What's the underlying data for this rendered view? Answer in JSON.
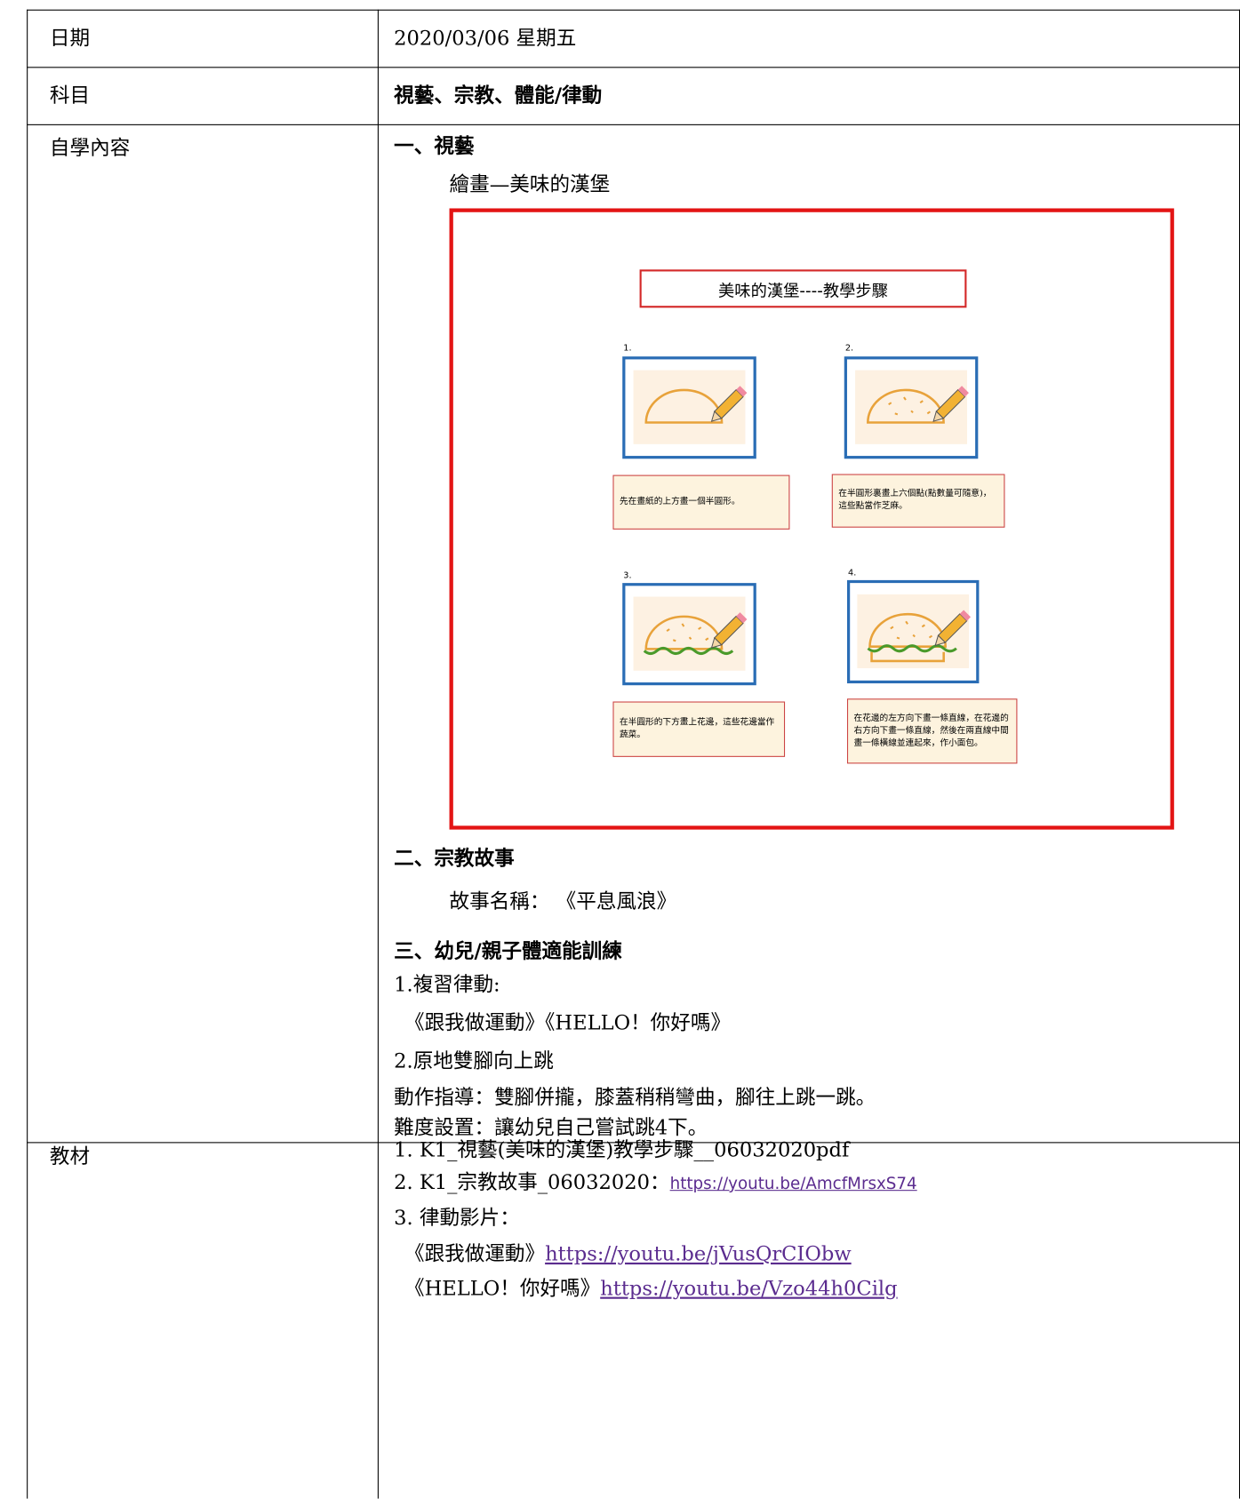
{
  "table": {
    "rows": [
      {
        "label": "日期",
        "value": "2020/03/06 星期五"
      },
      {
        "label": "科目",
        "value": "視藝、宗教、體能/律動"
      },
      {
        "label": "自學內容",
        "lines": [
          "一、視藝",
          "繪畫—美味的漢堡",
          "二、宗教故事",
          "故事名稱： 《平息風浪》",
          "三、幼兒/親子體適能訓練",
          "1.複習律動:",
          "《跟我做運動》《HELLO！你好嗎》",
          "2.原地雙腳向上跳",
          "動作指導：雙腳併攏，膝蓋稍稍彎曲，腳往上跳一跳。",
          "難度設置：讓幼兒自己嘗試跳4下。"
        ],
        "figure": {
          "title": "美味的漢堡----教學步驟",
          "steps": [
            {
              "number": "1.",
              "caption": "先在畫紙的上方畫一個半圓形。"
            },
            {
              "number": "2.",
              "caption": "在半圓形裏畫上六個點(點數量可隨意)，這些點當作芝麻。"
            },
            {
              "number": "3.",
              "caption": "在半圓形的下方畫上花邊，這些花邊當作蔬菜。"
            },
            {
              "number": "4.",
              "caption": "在花邊的左方向下畫一條直線，在花邊的右方向下畫一條直線，然後在兩直線中間畫一條橫線並連起來，作小面包。"
            }
          ]
        }
      },
      {
        "label": "教材",
        "lines": [
          {
            "text": "1. K1_視藝(美味的漢堡)教學步驟__06032020pdf"
          },
          {
            "text": "2. K1_宗教故事_06032020：",
            "link": "https://youtu.be/AmcfMrsxS74"
          },
          {
            "text": "3. 律動影片："
          },
          {
            "text": "《跟我做運動》",
            "link": "https://youtu.be/jVusQrCIObw"
          },
          {
            "text": "《HELLO！你好嗎》",
            "link": "https://youtu.be/Vzo44h0Cilg"
          }
        ]
      }
    ]
  }
}
